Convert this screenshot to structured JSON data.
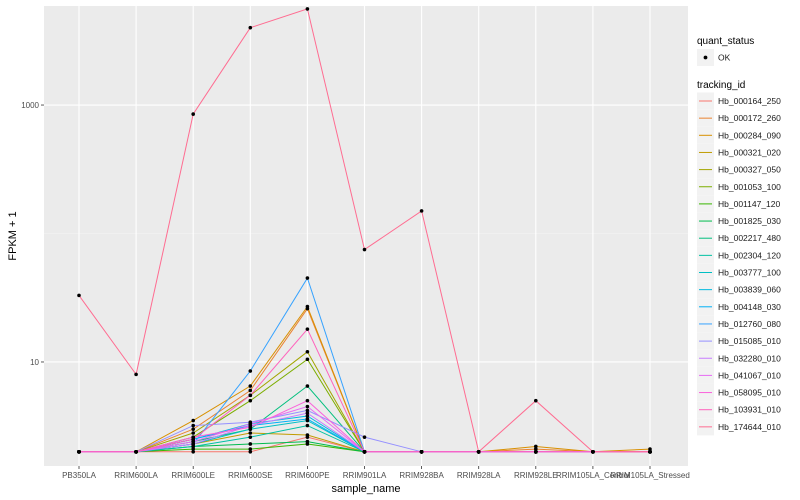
{
  "chart_data": {
    "type": "line",
    "xlabel": "sample_name",
    "ylabel": "FPKM + 1",
    "y_scale": "log10",
    "ylim": [
      1.55,
      5900
    ],
    "y_ticks": [
      10,
      1000
    ],
    "y_tick_labels": [
      "10",
      "1000"
    ],
    "grid": true,
    "legend_placement": "right",
    "categories": [
      "PB350LA",
      "RRIM600LA",
      "RRIM600LE",
      "RRIM600SE",
      "RRIM600PE",
      "RRIM901LA",
      "RRIM928BA",
      "RRIM928LA",
      "RRIM928LE",
      "RRIM105LA_Control",
      "RRIM105LA_Stressed"
    ],
    "shape_legend": {
      "title": "quant_status",
      "entries": [
        {
          "label": "OK",
          "symbol": "point"
        }
      ]
    },
    "color_legend_title": "tracking_id",
    "series": [
      {
        "name": "Hb_000164_250",
        "color": "#F8766D",
        "values": [
          2,
          2,
          2,
          2,
          2.6,
          2,
          2,
          2,
          2,
          2,
          2
        ]
      },
      {
        "name": "Hb_000172_260",
        "color": "#EA8331",
        "values": [
          2,
          2,
          3,
          6,
          26,
          2,
          2,
          2,
          2.1,
          2,
          2
        ]
      },
      {
        "name": "Hb_000284_090",
        "color": "#D89000",
        "values": [
          2,
          2,
          3.5,
          6.5,
          27,
          2,
          2,
          2,
          2.2,
          2,
          2.1
        ]
      },
      {
        "name": "Hb_000321_020",
        "color": "#C09B00",
        "values": [
          2,
          2,
          2.3,
          2.8,
          2.7,
          2,
          2,
          2,
          2,
          2,
          2
        ]
      },
      {
        "name": "Hb_000327_050",
        "color": "#A3A500",
        "values": [
          2,
          2,
          2.8,
          5.5,
          12,
          2,
          2,
          2,
          2,
          2,
          2
        ]
      },
      {
        "name": "Hb_001053_100",
        "color": "#7CAE00",
        "values": [
          2,
          2,
          2.6,
          5,
          10.5,
          2,
          2,
          2,
          2,
          2,
          2
        ]
      },
      {
        "name": "Hb_001147_120",
        "color": "#39B600",
        "values": [
          2,
          2,
          2.1,
          2.1,
          2.3,
          2,
          2,
          2,
          2,
          2,
          2
        ]
      },
      {
        "name": "Hb_001825_030",
        "color": "#00BB4E",
        "values": [
          2,
          2,
          2.2,
          2.3,
          2.4,
          2,
          2,
          2,
          2,
          2,
          2
        ]
      },
      {
        "name": "Hb_002217_480",
        "color": "#00BF7D",
        "values": [
          2,
          2,
          2.4,
          3,
          6.5,
          2,
          2,
          2,
          2,
          2,
          2
        ]
      },
      {
        "name": "Hb_002304_120",
        "color": "#00C1A3",
        "values": [
          2,
          2,
          2.2,
          2.6,
          3.2,
          2,
          2,
          2,
          2,
          2,
          2
        ]
      },
      {
        "name": "Hb_003777_100",
        "color": "#00BFC4",
        "values": [
          2,
          2,
          2.3,
          3,
          3.5,
          2,
          2,
          2,
          2,
          2,
          2
        ]
      },
      {
        "name": "Hb_003839_060",
        "color": "#00BAE0",
        "values": [
          2,
          2,
          2.5,
          3.3,
          3.8,
          2,
          2,
          2,
          2,
          2,
          2
        ]
      },
      {
        "name": "Hb_004148_030",
        "color": "#00B0F6",
        "values": [
          2,
          2,
          2.5,
          3.2,
          3.6,
          2,
          2,
          2,
          2,
          2,
          2
        ]
      },
      {
        "name": "Hb_012760_080",
        "color": "#35A2FF",
        "values": [
          2,
          2,
          2.3,
          8.5,
          45,
          2,
          2,
          2,
          2,
          2,
          2
        ]
      },
      {
        "name": "Hb_015085_010",
        "color": "#9590FF",
        "values": [
          2,
          2,
          3.2,
          3.4,
          4.2,
          2.6,
          2,
          2,
          2,
          2,
          2
        ]
      },
      {
        "name": "Hb_032280_010",
        "color": "#C77CFF",
        "values": [
          2,
          2,
          2.3,
          3.2,
          4,
          2,
          2,
          2,
          2,
          2,
          2
        ]
      },
      {
        "name": "Hb_041067_010",
        "color": "#E76BF3",
        "values": [
          2,
          2,
          2.4,
          3.3,
          4.5,
          2,
          2,
          2,
          2,
          2,
          2
        ]
      },
      {
        "name": "Hb_058095_010",
        "color": "#FA62DB",
        "values": [
          2,
          2,
          2.6,
          3.1,
          5,
          2,
          2,
          2,
          2,
          2,
          2
        ]
      },
      {
        "name": "Hb_103931_010",
        "color": "#FF62BC",
        "values": [
          2,
          2,
          2.5,
          5.5,
          18,
          2,
          2,
          2,
          2,
          2,
          2
        ]
      },
      {
        "name": "Hb_174644_010",
        "color": "#FF6C91",
        "values": [
          33,
          8,
          850,
          4000,
          5600,
          75,
          150,
          2,
          5,
          2,
          2
        ]
      }
    ]
  }
}
